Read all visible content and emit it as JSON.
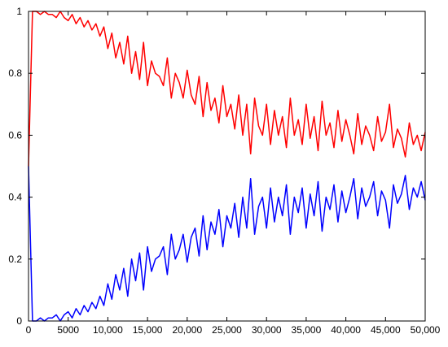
{
  "chart_data": {
    "type": "line",
    "title": "",
    "xlabel": "",
    "ylabel": "",
    "xlim": [
      0,
      50000
    ],
    "ylim": [
      0,
      1
    ],
    "grid": false,
    "legend": "none",
    "x_ticks": [
      0,
      5000,
      10000,
      15000,
      20000,
      25000,
      30000,
      35000,
      40000,
      45000,
      50000
    ],
    "x_tick_labels": [
      "0",
      "5000",
      "10,000",
      "15,000",
      "20,000",
      "25,000",
      "30,000",
      "35,000",
      "40,000",
      "45,000",
      "50,000"
    ],
    "y_ticks": [
      0,
      0.2,
      0.4,
      0.6,
      0.8,
      1
    ],
    "y_tick_labels": [
      "0",
      "0.2",
      "0.4",
      "0.6",
      "0.8",
      "1"
    ],
    "series": [
      {
        "color": "#ff0000",
        "x": [
          0,
          500,
          1000,
          1500,
          2000,
          2500,
          3000,
          3500,
          4000,
          4500,
          5000,
          5500,
          6000,
          6500,
          7000,
          7500,
          8000,
          8500,
          9000,
          9500,
          10000,
          10500,
          11000,
          11500,
          12000,
          12500,
          13000,
          13500,
          14000,
          14500,
          15000,
          15500,
          16000,
          16500,
          17000,
          17500,
          18000,
          18500,
          19000,
          19500,
          20000,
          20500,
          21000,
          21500,
          22000,
          22500,
          23000,
          23500,
          24000,
          24500,
          25000,
          25500,
          26000,
          26500,
          27000,
          27500,
          28000,
          28500,
          29000,
          29500,
          30000,
          30500,
          31000,
          31500,
          32000,
          32500,
          33000,
          33500,
          34000,
          34500,
          35000,
          35500,
          36000,
          36500,
          37000,
          37500,
          38000,
          38500,
          39000,
          39500,
          40000,
          40500,
          41000,
          41500,
          42000,
          42500,
          43000,
          43500,
          44000,
          44500,
          45000,
          45500,
          46000,
          46500,
          47000,
          47500,
          48000,
          48500,
          49000,
          49500,
          50000
        ],
        "values": [
          0.5,
          1.0,
          1.0,
          0.99,
          1.0,
          0.99,
          0.99,
          0.98,
          1.0,
          0.98,
          0.97,
          0.99,
          0.96,
          0.98,
          0.95,
          0.97,
          0.94,
          0.96,
          0.92,
          0.95,
          0.88,
          0.93,
          0.85,
          0.9,
          0.83,
          0.92,
          0.8,
          0.87,
          0.78,
          0.9,
          0.76,
          0.84,
          0.8,
          0.79,
          0.76,
          0.85,
          0.72,
          0.8,
          0.77,
          0.72,
          0.81,
          0.73,
          0.7,
          0.79,
          0.66,
          0.77,
          0.68,
          0.72,
          0.64,
          0.76,
          0.66,
          0.7,
          0.62,
          0.73,
          0.6,
          0.7,
          0.54,
          0.72,
          0.63,
          0.6,
          0.7,
          0.57,
          0.68,
          0.6,
          0.66,
          0.56,
          0.72,
          0.6,
          0.65,
          0.57,
          0.7,
          0.59,
          0.66,
          0.55,
          0.71,
          0.6,
          0.64,
          0.56,
          0.68,
          0.58,
          0.65,
          0.6,
          0.54,
          0.67,
          0.57,
          0.63,
          0.6,
          0.55,
          0.66,
          0.58,
          0.61,
          0.7,
          0.56,
          0.62,
          0.59,
          0.53,
          0.64,
          0.57,
          0.6,
          0.55,
          0.61
        ]
      },
      {
        "color": "#0000ff",
        "x": [
          0,
          500,
          1000,
          1500,
          2000,
          2500,
          3000,
          3500,
          4000,
          4500,
          5000,
          5500,
          6000,
          6500,
          7000,
          7500,
          8000,
          8500,
          9000,
          9500,
          10000,
          10500,
          11000,
          11500,
          12000,
          12500,
          13000,
          13500,
          14000,
          14500,
          15000,
          15500,
          16000,
          16500,
          17000,
          17500,
          18000,
          18500,
          19000,
          19500,
          20000,
          20500,
          21000,
          21500,
          22000,
          22500,
          23000,
          23500,
          24000,
          24500,
          25000,
          25500,
          26000,
          26500,
          27000,
          27500,
          28000,
          28500,
          29000,
          29500,
          30000,
          30500,
          31000,
          31500,
          32000,
          32500,
          33000,
          33500,
          34000,
          34500,
          35000,
          35500,
          36000,
          36500,
          37000,
          37500,
          38000,
          38500,
          39000,
          39500,
          40000,
          40500,
          41000,
          41500,
          42000,
          42500,
          43000,
          43500,
          44000,
          44500,
          45000,
          45500,
          46000,
          46500,
          47000,
          47500,
          48000,
          48500,
          49000,
          49500,
          50000
        ],
        "values": [
          0.5,
          0.0,
          0.0,
          0.01,
          0.0,
          0.01,
          0.01,
          0.02,
          0.0,
          0.02,
          0.03,
          0.01,
          0.04,
          0.02,
          0.05,
          0.03,
          0.06,
          0.04,
          0.08,
          0.05,
          0.12,
          0.07,
          0.15,
          0.1,
          0.17,
          0.08,
          0.2,
          0.13,
          0.22,
          0.1,
          0.24,
          0.16,
          0.2,
          0.21,
          0.24,
          0.15,
          0.28,
          0.2,
          0.23,
          0.28,
          0.19,
          0.27,
          0.3,
          0.21,
          0.34,
          0.23,
          0.32,
          0.28,
          0.36,
          0.24,
          0.34,
          0.3,
          0.38,
          0.27,
          0.4,
          0.3,
          0.46,
          0.28,
          0.37,
          0.4,
          0.3,
          0.43,
          0.32,
          0.4,
          0.34,
          0.44,
          0.28,
          0.4,
          0.35,
          0.43,
          0.3,
          0.41,
          0.34,
          0.45,
          0.29,
          0.4,
          0.36,
          0.44,
          0.32,
          0.42,
          0.35,
          0.4,
          0.46,
          0.33,
          0.43,
          0.37,
          0.4,
          0.45,
          0.34,
          0.42,
          0.39,
          0.3,
          0.44,
          0.38,
          0.41,
          0.47,
          0.36,
          0.43,
          0.4,
          0.45,
          0.39
        ]
      }
    ]
  }
}
